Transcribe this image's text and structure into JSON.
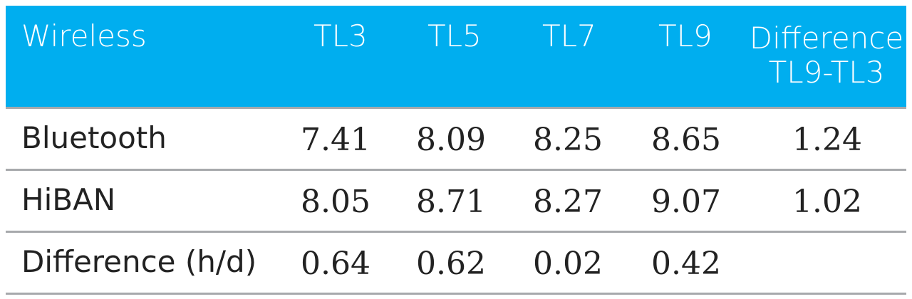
{
  "table": {
    "header": {
      "title": "Wireless",
      "columns": [
        "TL3",
        "TL5",
        "TL7",
        "TL9"
      ],
      "diff_line1": "Difference",
      "diff_line2": "TL9-TL3"
    },
    "rows": [
      {
        "label": "Bluetooth",
        "values": [
          "7.41",
          "8.09",
          "8.25",
          "8.65"
        ],
        "difference": "1.24"
      },
      {
        "label": "HiBAN",
        "values": [
          "8.05",
          "8.71",
          "8.27",
          "9.07"
        ],
        "difference": "1.02"
      },
      {
        "label": "Difference (h/d)",
        "values": [
          "0.64",
          "0.62",
          "0.02",
          "0.42"
        ],
        "difference": ""
      }
    ]
  },
  "colors": {
    "header_bg": "#00aeef",
    "header_text": "#ffffff",
    "rule": "#a7a9ac",
    "text": "#222222"
  }
}
